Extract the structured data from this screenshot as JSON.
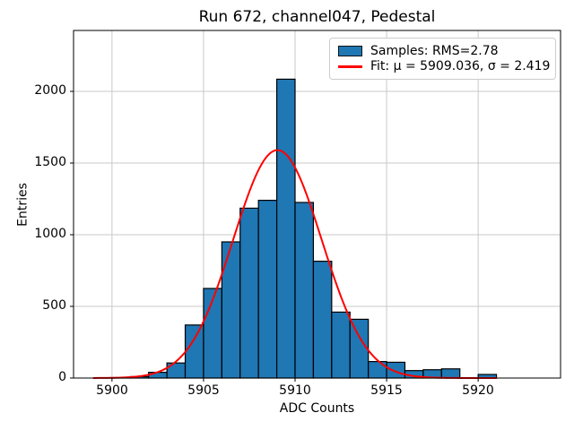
{
  "title": "Run 672, channel047, Pedestal",
  "legend": {
    "samples_label": "Samples: RMS=2.78",
    "fit_label": "Fit: μ = 5909.036, σ = 2.419"
  },
  "chart_data": {
    "type": "bar",
    "subtype": "histogram",
    "title": "Run 672, channel047, Pedestal",
    "xlabel": "ADC Counts",
    "ylabel": "Entries",
    "bin_edges": [
      5899,
      5900,
      5901,
      5902,
      5903,
      5904,
      5905,
      5906,
      5907,
      5908,
      5909,
      5910,
      5911,
      5912,
      5913,
      5914,
      5915,
      5916,
      5917,
      5918,
      5919,
      5920,
      5921
    ],
    "values": [
      2,
      3,
      10,
      40,
      105,
      370,
      625,
      950,
      1185,
      1240,
      2085,
      1225,
      815,
      460,
      410,
      115,
      110,
      52,
      58,
      64,
      0,
      25
    ],
    "series_name": "Samples: RMS=2.78",
    "rms": 2.78,
    "fit": {
      "type": "gaussian",
      "name": "Fit: μ = 5909.036, σ = 2.419",
      "mu": 5909.036,
      "sigma": 2.419,
      "amplitude": 1590,
      "x_range": [
        5899,
        5921
      ],
      "color": "#ff0000",
      "line_width": 2
    },
    "xticks": [
      5900,
      5905,
      5910,
      5915,
      5920
    ],
    "yticks": [
      0,
      500,
      1000,
      1500,
      2000
    ],
    "xlim": [
      5897.9,
      5924.5
    ],
    "ylim": [
      0,
      2425
    ],
    "grid": true,
    "legend_position": "upper right",
    "bar_color": "#1f77b4",
    "bar_edge_color": "#000000",
    "grid_color": "#c9c9c9",
    "axis_color": "#000000",
    "background_color": "#ffffff"
  }
}
